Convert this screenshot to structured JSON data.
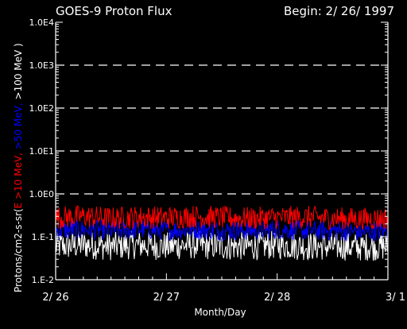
{
  "header": {
    "title": "GOES-9 Proton Flux",
    "begin": "Begin: 2/ 26/ 1997"
  },
  "ylabel": {
    "prefix": "Protons/cm2-s-sr(",
    "e10": "E >10 MeV, ",
    "e50": ">50 MeV, ",
    "e100": ">100 MeV )"
  },
  "colors": {
    "background": "#000000",
    "axes": "#ffffff",
    "grid": "#ffffff",
    "e10": "#ff0000",
    "e50": "#0000ff",
    "e100": "#ffffff"
  },
  "chart_data": {
    "type": "line",
    "title": "GOES-9 Proton Flux",
    "xlabel": "Month/Day",
    "ylabel": "Protons/cm2-s-sr(E >10 MeV, >50 MeV, >100 MeV )",
    "yscale": "log",
    "ylim": [
      0.01,
      10000
    ],
    "ytick_labels": [
      "1.E-2",
      "1.E-1",
      "1.0E0",
      "1.0E1",
      "1.0E2",
      "1.0E3",
      "1.0E4"
    ],
    "ytick_values": [
      0.01,
      0.1,
      1,
      10,
      100,
      1000,
      10000
    ],
    "xlim": [
      "1997-02-26",
      "1997-03-01"
    ],
    "xtick_labels": [
      "2/ 26",
      "2/ 27",
      "2/ 28",
      "3/ 1"
    ],
    "xtick_values": [
      "1997-02-26",
      "1997-02-27",
      "1997-02-28",
      "1997-03-01"
    ],
    "grid": "dashed horizontal lines at 1.0E0 through 1.0E3",
    "series": [
      {
        "name": "E >10 MeV",
        "color": "#ff0000",
        "x": [
          "1997-02-26",
          "1997-02-26T06:00",
          "1997-02-26T12:00",
          "1997-02-26T18:00",
          "1997-02-27",
          "1997-02-27T06:00",
          "1997-02-27T12:00",
          "1997-02-27T18:00",
          "1997-02-28",
          "1997-02-28T06:00",
          "1997-02-28T12:00",
          "1997-02-28T18:00",
          "1997-03-01"
        ],
        "values": [
          0.28,
          0.3,
          0.27,
          0.29,
          0.28,
          0.3,
          0.28,
          0.27,
          0.28,
          0.29,
          0.27,
          0.26,
          0.27
        ],
        "typical_range": [
          0.15,
          0.55
        ]
      },
      {
        "name": ">50 MeV",
        "color": "#0000ff",
        "x": [
          "1997-02-26",
          "1997-02-26T06:00",
          "1997-02-26T12:00",
          "1997-02-26T18:00",
          "1997-02-27",
          "1997-02-27T06:00",
          "1997-02-27T12:00",
          "1997-02-27T18:00",
          "1997-02-28",
          "1997-02-28T06:00",
          "1997-02-28T12:00",
          "1997-02-28T18:00",
          "1997-03-01"
        ],
        "values": [
          0.14,
          0.15,
          0.14,
          0.15,
          0.14,
          0.15,
          0.14,
          0.14,
          0.15,
          0.14,
          0.14,
          0.13,
          0.14
        ],
        "typical_range": [
          0.08,
          0.25
        ]
      },
      {
        "name": ">100 MeV",
        "color": "#ffffff",
        "x": [
          "1997-02-26",
          "1997-02-26T06:00",
          "1997-02-26T12:00",
          "1997-02-26T18:00",
          "1997-02-27",
          "1997-02-27T06:00",
          "1997-02-27T12:00",
          "1997-02-27T18:00",
          "1997-02-28",
          "1997-02-28T06:00",
          "1997-02-28T12:00",
          "1997-02-28T18:00",
          "1997-03-01"
        ],
        "values": [
          0.06,
          0.065,
          0.06,
          0.065,
          0.06,
          0.065,
          0.06,
          0.06,
          0.065,
          0.06,
          0.06,
          0.058,
          0.06
        ],
        "typical_range": [
          0.028,
          0.14
        ]
      }
    ]
  }
}
